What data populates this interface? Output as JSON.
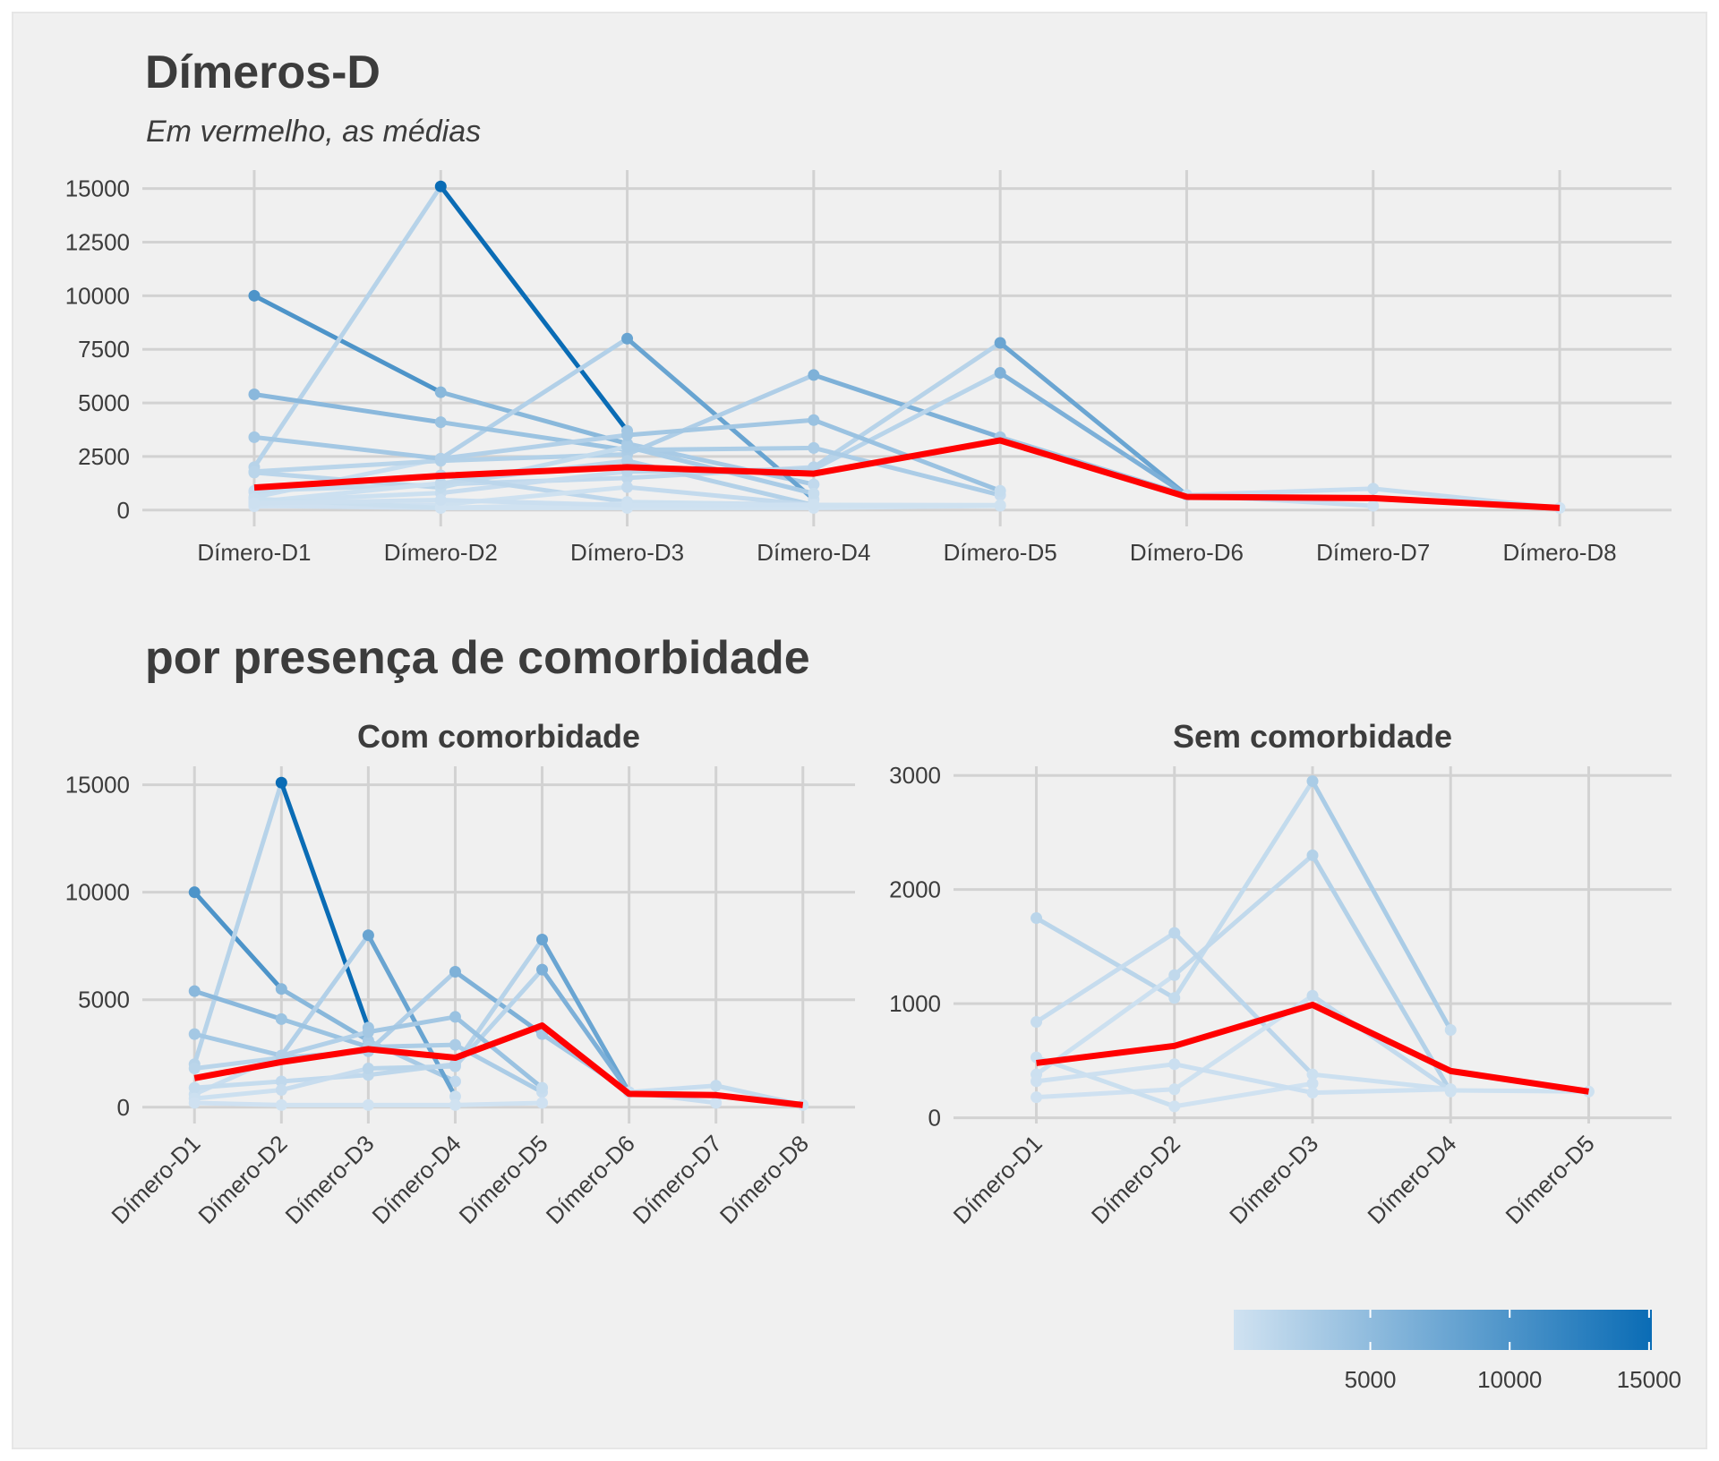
{
  "section_title": "por presença de comorbidade",
  "color_scale": {
    "colors": [
      "#d0e2f1",
      "#0a6cb5"
    ],
    "lim": [
      100,
      15100
    ],
    "ticks": [
      5000,
      10000,
      15000
    ]
  },
  "chart_data": [
    {
      "type": "line",
      "title": "Dímeros-D",
      "subtitle": "Em vermelho, as médias",
      "categories": [
        "Dímero-D1",
        "Dímero-D2",
        "Dímero-D3",
        "Dímero-D4",
        "Dímero-D5",
        "Dímero-D6",
        "Dímero-D7",
        "Dímero-D8"
      ],
      "ylim": [
        -760,
        15860
      ],
      "yticks": [
        0,
        2500,
        5000,
        7500,
        10000,
        12500,
        15000
      ],
      "grid": true,
      "series": [
        {
          "values": [
            10000,
            5500,
            3100,
            1200,
            null,
            null,
            null,
            null
          ]
        },
        {
          "values": [
            2000,
            15100,
            3700,
            null,
            null,
            null,
            null,
            null
          ]
        },
        {
          "values": [
            600,
            2400,
            8000,
            500,
            null,
            null,
            null,
            null
          ]
        },
        {
          "values": [
            1800,
            2300,
            2600,
            6300,
            3400,
            700,
            null,
            null
          ]
        },
        {
          "values": [
            900,
            1200,
            1500,
            2000,
            7800,
            700,
            1000,
            100
          ]
        },
        {
          "values": [
            400,
            800,
            1800,
            1900,
            6400,
            700,
            200,
            null
          ]
        },
        {
          "values": [
            5400,
            4100,
            2800,
            2900,
            700,
            null,
            null,
            null
          ]
        },
        {
          "values": [
            3400,
            2400,
            3500,
            4200,
            900,
            null,
            null,
            null
          ]
        },
        {
          "values": [
            200,
            100,
            100,
            100,
            200,
            null,
            null,
            null
          ]
        },
        {
          "values": [
            1750,
            1050,
            2950,
            770,
            null,
            null,
            null,
            null
          ]
        },
        {
          "values": [
            380,
            1250,
            2300,
            230,
            null,
            null,
            null,
            null
          ]
        },
        {
          "values": [
            840,
            1620,
            380,
            250,
            null,
            null,
            null,
            null
          ]
        },
        {
          "values": [
            180,
            250,
            1070,
            240,
            230,
            null,
            null,
            null
          ]
        },
        {
          "values": [
            530,
            100,
            300,
            null,
            null,
            null,
            null,
            null
          ]
        },
        {
          "values": [
            320,
            470,
            220,
            250,
            null,
            null,
            null,
            null
          ]
        },
        {
          "color": "#ff0000",
          "values": [
            1050,
            1600,
            2000,
            1700,
            3250,
            620,
            560,
            100
          ]
        }
      ]
    },
    {
      "type": "line",
      "title": "Com comorbidade",
      "categories": [
        "Dímero-D1",
        "Dímero-D2",
        "Dímero-D3",
        "Dímero-D4",
        "Dímero-D5",
        "Dímero-D6",
        "Dímero-D7",
        "Dímero-D8"
      ],
      "ylim": [
        -760,
        15860
      ],
      "yticks": [
        0,
        5000,
        10000,
        15000
      ],
      "grid": true,
      "series": [
        {
          "values": [
            10000,
            5500,
            3100,
            1200,
            null,
            null,
            null,
            null
          ]
        },
        {
          "values": [
            2000,
            15100,
            3700,
            null,
            null,
            null,
            null,
            null
          ]
        },
        {
          "values": [
            600,
            2400,
            8000,
            500,
            null,
            null,
            null,
            null
          ]
        },
        {
          "values": [
            1800,
            2300,
            2600,
            6300,
            3400,
            700,
            null,
            null
          ]
        },
        {
          "values": [
            900,
            1200,
            1500,
            2000,
            7800,
            700,
            1000,
            100
          ]
        },
        {
          "values": [
            400,
            800,
            1800,
            1900,
            6400,
            700,
            200,
            null
          ]
        },
        {
          "values": [
            5400,
            4100,
            2800,
            2900,
            700,
            null,
            null,
            null
          ]
        },
        {
          "values": [
            3400,
            2400,
            3500,
            4200,
            900,
            null,
            null,
            null
          ]
        },
        {
          "values": [
            200,
            100,
            100,
            100,
            200,
            null,
            null,
            null
          ]
        },
        {
          "color": "#ff0000",
          "values": [
            1350,
            2100,
            2700,
            2300,
            3800,
            620,
            560,
            100
          ]
        }
      ]
    },
    {
      "type": "line",
      "title": "Sem comorbidade",
      "categories": [
        "Dímero-D1",
        "Dímero-D2",
        "Dímero-D3",
        "Dímero-D4",
        "Dímero-D5"
      ],
      "ylim": [
        -50,
        3080
      ],
      "yticks": [
        0,
        1000,
        2000,
        3000
      ],
      "grid": true,
      "series": [
        {
          "values": [
            1750,
            1050,
            2950,
            770,
            null
          ]
        },
        {
          "values": [
            380,
            1250,
            2300,
            230,
            null
          ]
        },
        {
          "values": [
            840,
            1620,
            380,
            250,
            null
          ]
        },
        {
          "values": [
            180,
            250,
            1070,
            240,
            230
          ]
        },
        {
          "values": [
            530,
            100,
            300,
            null,
            null
          ]
        },
        {
          "values": [
            320,
            470,
            220,
            250,
            null
          ]
        },
        {
          "color": "#ff0000",
          "values": [
            480,
            630,
            990,
            410,
            230
          ]
        }
      ]
    }
  ]
}
